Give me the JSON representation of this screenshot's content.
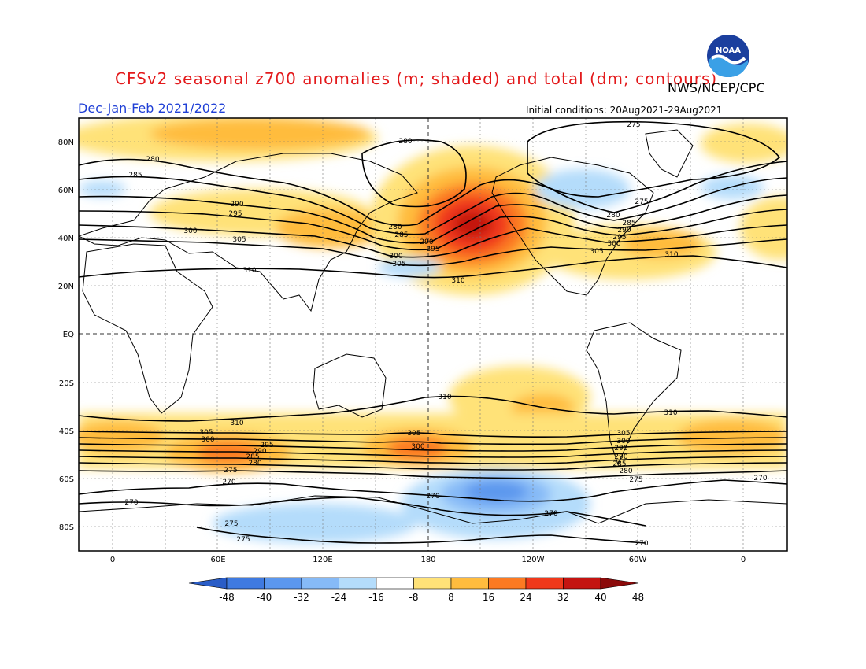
{
  "header": {
    "title": "CFSv2 seasonal z700 anomalies (m; shaded) and total (dm; contours)",
    "agency": "NWS/NCEP/CPC",
    "season": "Dec-Jan-Feb 2021/2022",
    "initial_conditions": "Initial conditions: 20Aug2021-29Aug2021",
    "logo_text": "NOAA"
  },
  "axes": {
    "lat_labels": [
      "80N",
      "60N",
      "40N",
      "20N",
      "EQ",
      "20S",
      "40S",
      "60S",
      "80S"
    ],
    "lon_labels": [
      "0",
      "60E",
      "120E",
      "180",
      "120W",
      "60W",
      "0"
    ]
  },
  "colorbar": {
    "ticks": [
      "-48",
      "-40",
      "-32",
      "-24",
      "-16",
      "-8",
      "8",
      "16",
      "24",
      "32",
      "40",
      "48"
    ],
    "colors": [
      "#2a5dc7",
      "#3f7ae0",
      "#5b97ee",
      "#86baf7",
      "#b4dcfb",
      "#ffffff",
      "#ffe278",
      "#ffbc3e",
      "#fc7a22",
      "#f0391b",
      "#c41411",
      "#8b0a0a"
    ]
  },
  "contour_labels": [
    "275",
    "280",
    "280",
    "285",
    "290",
    "295",
    "300",
    "305",
    "310",
    "280",
    "285",
    "290",
    "295",
    "300",
    "305",
    "310",
    "275",
    "280",
    "285",
    "290",
    "295",
    "300",
    "305",
    "310",
    "310",
    "305",
    "300",
    "295",
    "290",
    "285",
    "280",
    "275",
    "270",
    "310",
    "305",
    "300",
    "270",
    "270",
    "275",
    "275",
    "270",
    "270",
    "305",
    "300",
    "295",
    "290",
    "285",
    "280",
    "275",
    "310",
    "270"
  ]
}
